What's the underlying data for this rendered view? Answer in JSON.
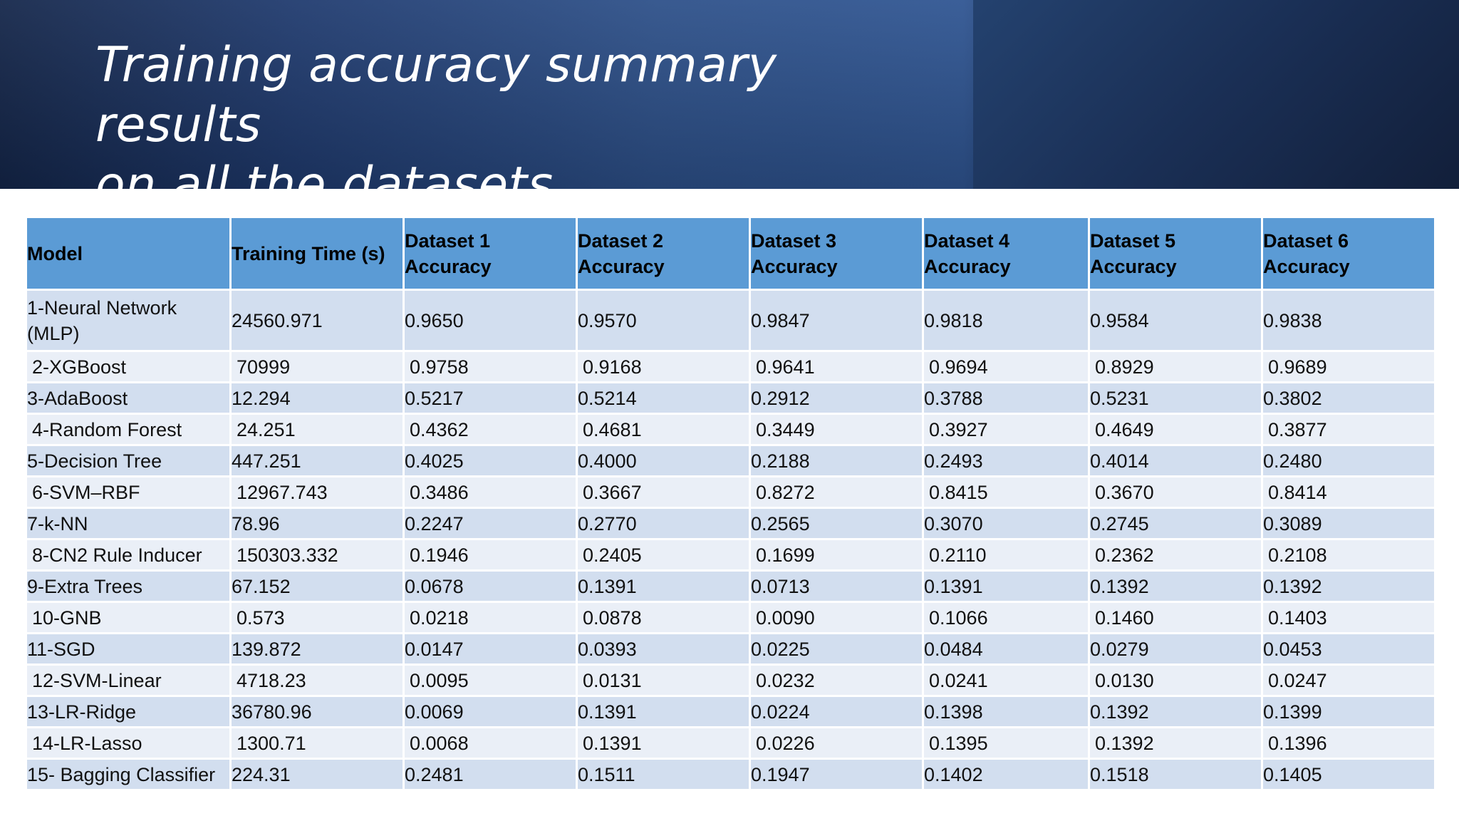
{
  "slide": {
    "title_line1": "Training accuracy summary results",
    "title_line2": "on all the datasets"
  },
  "table": {
    "headers": [
      "Model",
      "Training Time (s)",
      "Dataset 1 Accuracy",
      "Dataset 2 Accuracy",
      "Dataset 3 Accuracy",
      "Dataset 4 Accuracy",
      "Dataset 5 Accuracy",
      "Dataset 6 Accuracy"
    ],
    "rows": [
      [
        "1-Neural Network (MLP)",
        "24560.971",
        "0.9650",
        "0.9570",
        "0.9847",
        "0.9818",
        "0.9584",
        "0.9838"
      ],
      [
        "2-XGBoost",
        "70999",
        "0.9758",
        "0.9168",
        "0.9641",
        "0.9694",
        "0.8929",
        "0.9689"
      ],
      [
        "3-AdaBoost",
        "12.294",
        "0.5217",
        "0.5214",
        "0.2912",
        "0.3788",
        "0.5231",
        "0.3802"
      ],
      [
        "4-Random Forest",
        "24.251",
        "0.4362",
        "0.4681",
        "0.3449",
        "0.3927",
        "0.4649",
        "0.3877"
      ],
      [
        "5-Decision Tree",
        "447.251",
        "0.4025",
        "0.4000",
        "0.2188",
        "0.2493",
        "0.4014",
        "0.2480"
      ],
      [
        "6-SVM–RBF",
        "12967.743",
        "0.3486",
        "0.3667",
        "0.8272",
        "0.8415",
        "0.3670",
        "0.8414"
      ],
      [
        "7-k-NN",
        "78.96",
        "0.2247",
        "0.2770",
        "0.2565",
        "0.3070",
        "0.2745",
        "0.3089"
      ],
      [
        "8-CN2 Rule Inducer",
        "150303.332",
        "0.1946",
        "0.2405",
        "0.1699",
        "0.2110",
        "0.2362",
        "0.2108"
      ],
      [
        "9-Extra Trees",
        "67.152",
        "0.0678",
        "0.1391",
        "0.0713",
        "0.1391",
        "0.1392",
        "0.1392"
      ],
      [
        "10-GNB",
        "0.573",
        "0.0218",
        "0.0878",
        "0.0090",
        "0.1066",
        "0.1460",
        "0.1403"
      ],
      [
        "11-SGD",
        "139.872",
        "0.0147",
        "0.0393",
        "0.0225",
        "0.0484",
        "0.0279",
        "0.0453"
      ],
      [
        "12-SVM-Linear",
        "4718.23",
        "0.0095",
        "0.0131",
        "0.0232",
        "0.0241",
        "0.0130",
        "0.0247"
      ],
      [
        "13-LR-Ridge",
        "36780.96",
        "0.0069",
        "0.1391",
        "0.0224",
        "0.1398",
        "0.1392",
        "0.1399"
      ],
      [
        "14-LR-Lasso",
        "1300.71",
        "0.0068",
        "0.1391",
        "0.0226",
        "0.1395",
        "0.1392",
        "0.1396"
      ],
      [
        "15- Bagging Classifier",
        "224.31",
        "0.2481",
        "0.1511",
        "0.1947",
        "0.1402",
        "0.1518",
        "0.1405"
      ]
    ]
  }
}
